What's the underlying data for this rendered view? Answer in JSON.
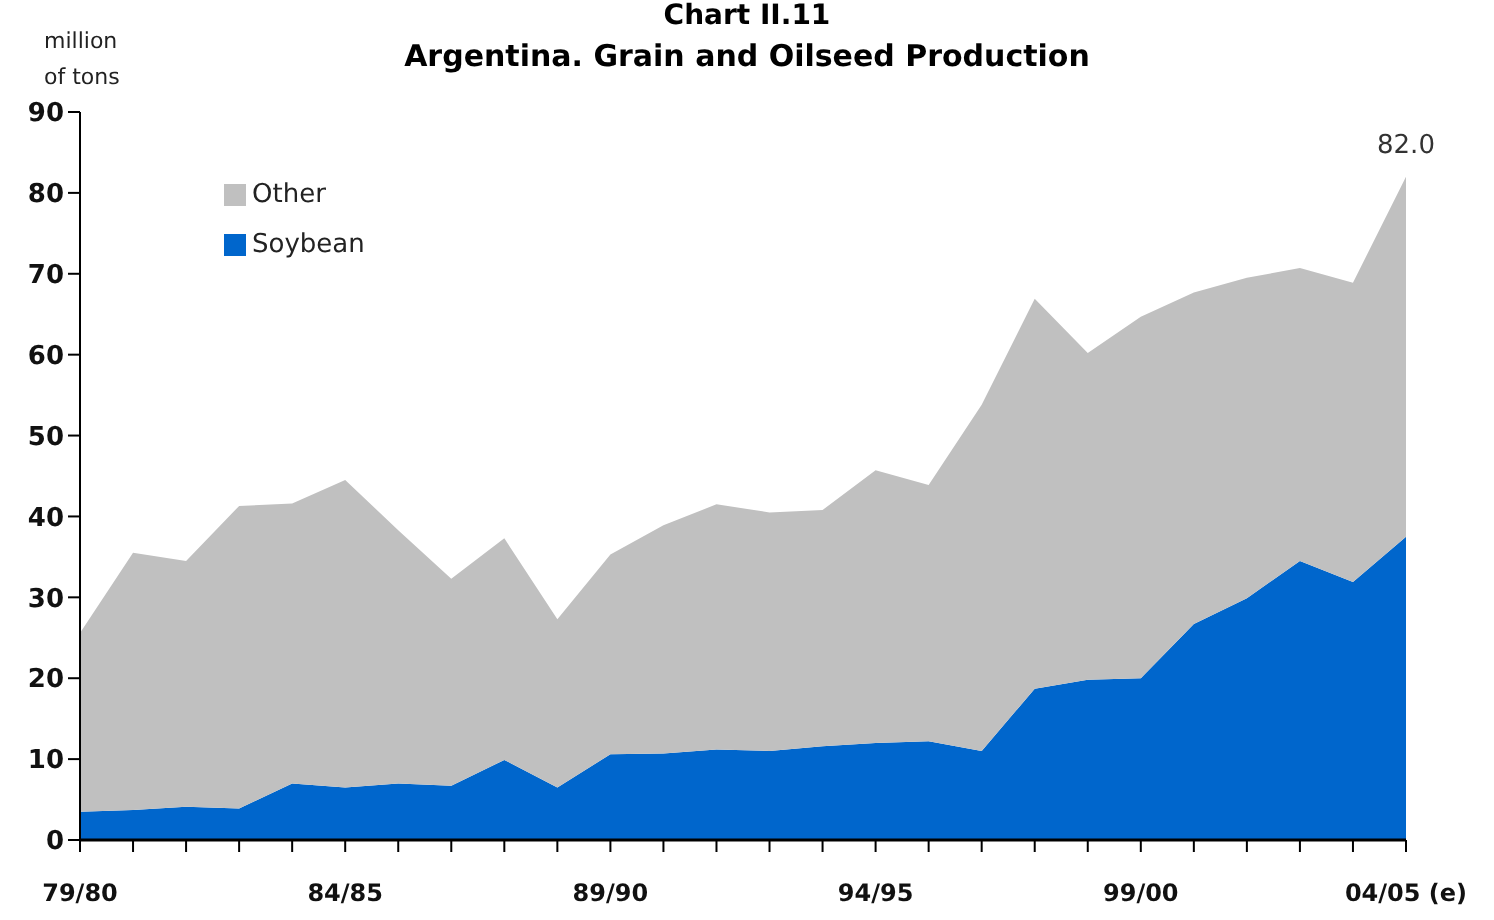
{
  "chart_data": {
    "type": "area",
    "title": "Chart II.11",
    "subtitle": "Argentina. Grain and Oilseed Production",
    "ylabel": "million of tons",
    "stacked": true,
    "categories": [
      "79/80",
      null,
      null,
      null,
      null,
      "84/85",
      null,
      null,
      null,
      null,
      "89/90",
      null,
      null,
      null,
      null,
      "94/95",
      null,
      null,
      null,
      null,
      "99/00",
      null,
      null,
      null,
      null,
      "04/05 (e)"
    ],
    "series": [
      {
        "name": "Soybean",
        "color": "#0066cc",
        "values": [
          3.5,
          3.7,
          4.1,
          3.9,
          7.0,
          6.5,
          7.0,
          6.7,
          9.9,
          6.5,
          10.6,
          10.7,
          11.2,
          11.0,
          11.6,
          12.0,
          12.2,
          11.0,
          18.7,
          19.8,
          20.0,
          26.7,
          29.9,
          34.5,
          31.9,
          37.5
        ]
      },
      {
        "name": "Other",
        "color": "#c0c0c0",
        "values": [
          22.1,
          31.8,
          30.4,
          37.4,
          34.6,
          38.0,
          31.3,
          25.6,
          27.4,
          20.8,
          24.7,
          28.2,
          30.3,
          29.5,
          29.2,
          33.7,
          31.7,
          42.8,
          48.2,
          40.4,
          44.7,
          41.0,
          39.6,
          36.2,
          37.0,
          44.5
        ]
      }
    ],
    "ylim": [
      0,
      90
    ],
    "yticks": [
      0,
      10,
      20,
      30,
      40,
      50,
      60,
      70,
      80,
      90
    ],
    "grid": false,
    "legend": "top left",
    "annotations": [
      {
        "text": "82.0",
        "x": "04/05 (e)",
        "y": 82.0
      }
    ]
  }
}
